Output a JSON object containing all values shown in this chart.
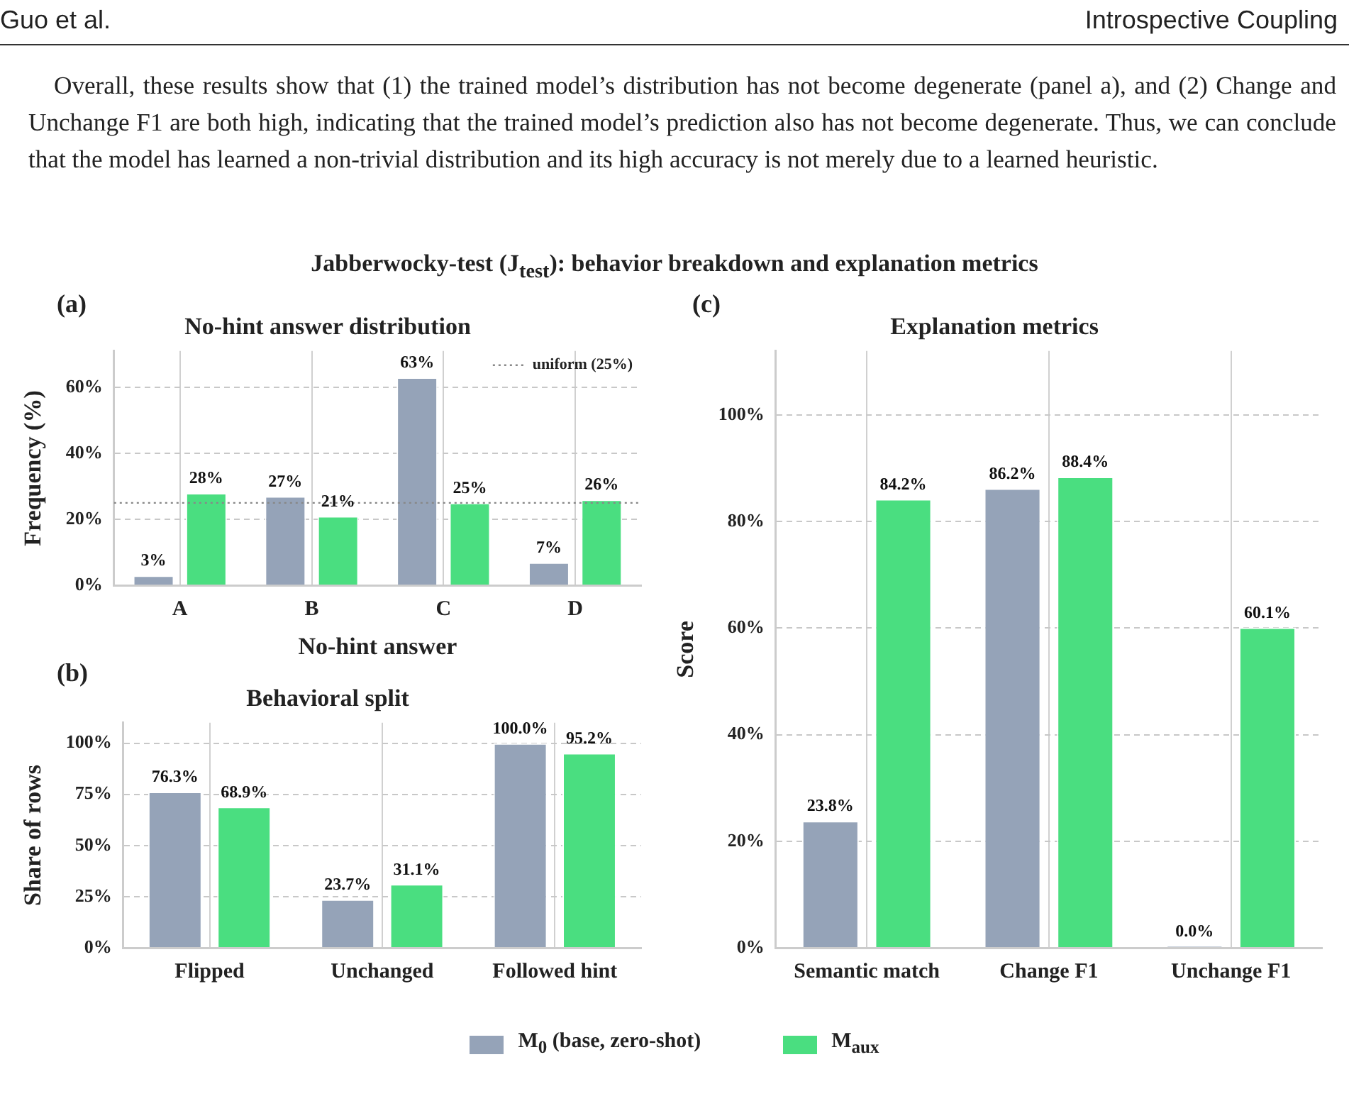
{
  "chart_data": [
    {
      "type": "bar",
      "title": "No-hint answer distribution",
      "xlabel": "No-hint answer",
      "ylabel": "Frequency (%)",
      "annotations": [
        "Guo et al.",
        "Introspective Coupling",
        "Overall, these results show that (1) the trained model’s distribution has not become degenerate (panel a), and (2) Change and Unchange F1 are both high, indicating that the trained model’s prediction also has not become degenerate. Thus, we can conclude that the model has learned a non-trivial distribution and its high accuracy is not merely due to a learned heuristic.",
        "Jabberwocky-test (J$_{test}$): behavior breakdown and explanation metrics",
        "(a)"
      ],
      "categories": [
        "A",
        "B",
        "C",
        "D"
      ],
      "series": [
        {
          "color": "#95a3b8",
          "values": [
            3,
            27,
            63,
            7
          ],
          "value_labels": [
            "3%",
            "27%",
            "63%",
            "7%"
          ]
        },
        {
          "color": "#4ade80",
          "values": [
            28,
            21,
            25,
            26
          ],
          "value_labels": [
            "28%",
            "21%",
            "25%",
            "26%"
          ]
        }
      ],
      "ylim": [
        0,
        71
      ],
      "yticks": [
        {
          "value": 0,
          "label": "0%"
        },
        {
          "value": 20,
          "label": "20%"
        },
        {
          "value": 40,
          "label": "40%"
        },
        {
          "value": 60,
          "label": "60%"
        }
      ],
      "grid": true,
      "ref_lines": [
        {
          "axis": "y",
          "value": 25,
          "label": "uniform (25%)",
          "color": "#888888",
          "line_style": "dotted"
        }
      ]
    },
    {
      "type": "bar",
      "title": "Behavioral split",
      "ylabel": "Share of rows",
      "annotations": [
        "(b)"
      ],
      "categories": [
        "Flipped",
        "Unchanged",
        "Followed hint"
      ],
      "series": [
        {
          "color": "#95a3b8",
          "values": [
            76.3,
            23.7,
            100.0
          ],
          "value_labels": [
            "76.3%",
            "23.7%",
            "100.0%"
          ]
        },
        {
          "color": "#4ade80",
          "values": [
            68.9,
            31.1,
            95.2
          ],
          "value_labels": [
            "68.9%",
            "31.1%",
            "95.2%"
          ]
        }
      ],
      "ylim": [
        0,
        110
      ],
      "yticks": [
        {
          "value": 0,
          "label": "0%"
        },
        {
          "value": 25,
          "label": "25%"
        },
        {
          "value": 50,
          "label": "50%"
        },
        {
          "value": 75,
          "label": "75%"
        },
        {
          "value": 100,
          "label": "100%"
        }
      ],
      "grid": true
    },
    {
      "type": "bar",
      "title": "Explanation metrics",
      "ylabel": "Score",
      "annotations": [
        "(c)"
      ],
      "categories": [
        "Semantic match",
        "Change F1",
        "Unchange F1"
      ],
      "series": [
        {
          "name": "M$_{0}$ (base, zero-shot)",
          "color": "#95a3b8",
          "values": [
            23.8,
            86.2,
            0.0
          ],
          "value_labels": [
            "23.8%",
            "86.2%",
            "0.0%"
          ]
        },
        {
          "name": "M$_{aux}$",
          "color": "#4ade80",
          "values": [
            84.2,
            88.4,
            60.1
          ],
          "value_labels": [
            "84.2%",
            "88.4%",
            "60.1%"
          ]
        }
      ],
      "ylim": [
        0,
        112
      ],
      "yticks": [
        {
          "value": 0,
          "label": "0%"
        },
        {
          "value": 20,
          "label": "20%"
        },
        {
          "value": 40,
          "label": "40%"
        },
        {
          "value": 60,
          "label": "60%"
        },
        {
          "value": 80,
          "label": "80%"
        },
        {
          "value": 100,
          "label": "100%"
        }
      ],
      "grid": true,
      "legend": "bottom"
    }
  ]
}
